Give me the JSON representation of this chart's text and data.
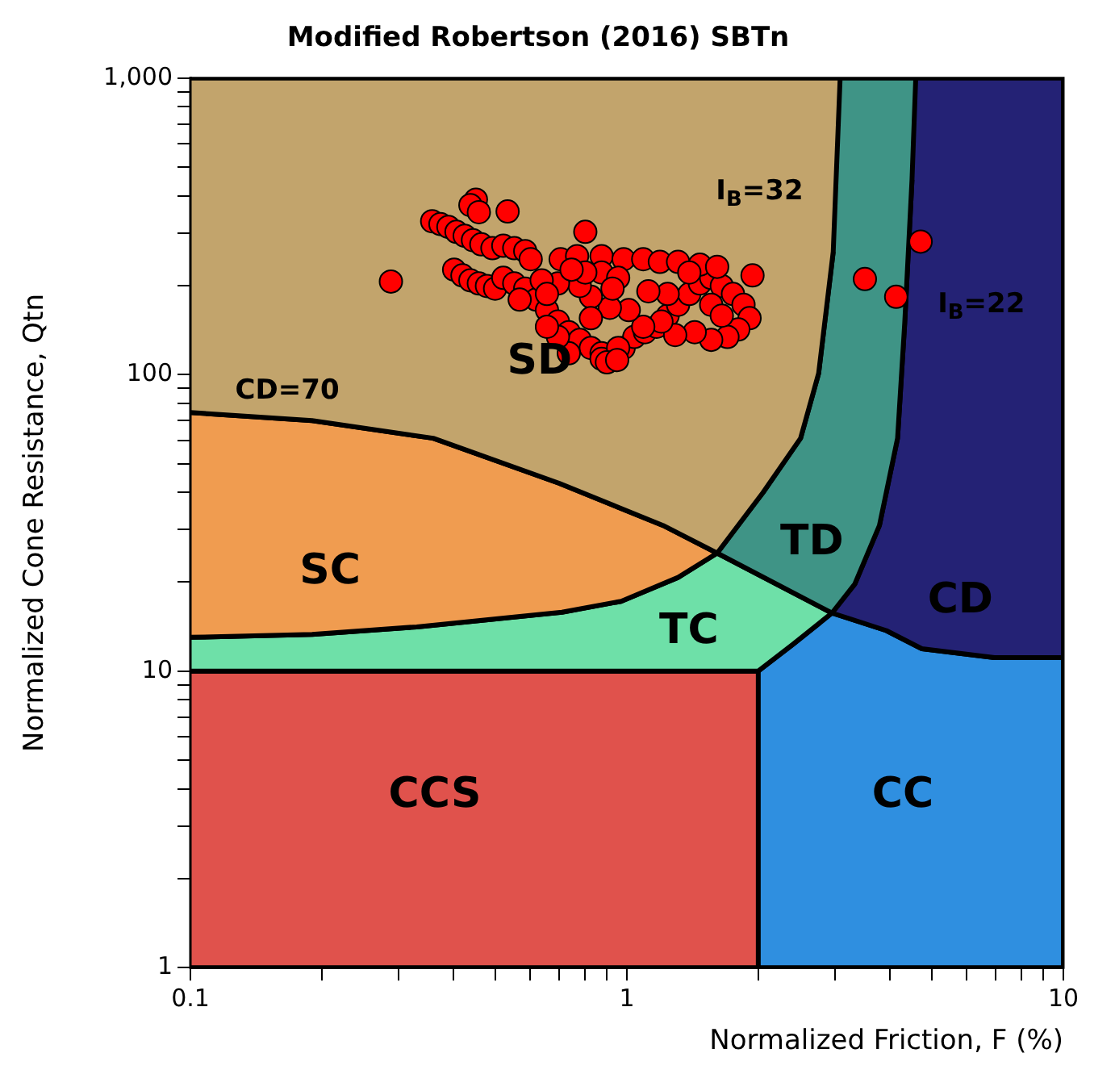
{
  "chart_data": {
    "type": "scatter",
    "title": "Modified Robertson (2016) SBTn",
    "xlabel": "Normalized Friction, F (%)",
    "ylabel": "Normalized Cone Resistance, Qtn",
    "log": "xy",
    "legend": false,
    "xlim": [
      0.1,
      10
    ],
    "ylim": [
      1,
      1000
    ],
    "xticks": [
      0.1,
      {
        "value": 0.2,
        "label": null
      },
      {
        "value": 0.3,
        "label": null
      },
      {
        "value": 0.4,
        "label": null
      },
      {
        "value": 0.5,
        "label": null
      },
      {
        "value": 0.6,
        "label": null
      },
      {
        "value": 0.7,
        "label": null
      },
      {
        "value": 0.8,
        "label": null
      },
      {
        "value": 0.9,
        "label": null
      },
      1,
      {
        "value": 2,
        "label": null
      },
      {
        "value": 3,
        "label": null
      },
      {
        "value": 4,
        "label": null
      },
      {
        "value": 5,
        "label": null
      },
      {
        "value": 6,
        "label": null
      },
      {
        "value": 7,
        "label": null
      },
      {
        "value": 8,
        "label": null
      },
      {
        "value": 9,
        "label": null
      },
      10
    ],
    "yticks": [
      1,
      {
        "value": 2,
        "label": null
      },
      {
        "value": 3,
        "label": null
      },
      {
        "value": 4,
        "label": null
      },
      {
        "value": 5,
        "label": null
      },
      {
        "value": 6,
        "label": null
      },
      {
        "value": 7,
        "label": null
      },
      {
        "value": 8,
        "label": null
      },
      {
        "value": 9,
        "label": null
      },
      10,
      {
        "value": 20,
        "label": null
      },
      {
        "value": 30,
        "label": null
      },
      {
        "value": 40,
        "label": null
      },
      {
        "value": 50,
        "label": null
      },
      {
        "value": 60,
        "label": null
      },
      {
        "value": 70,
        "label": null
      },
      {
        "value": 80,
        "label": null
      },
      {
        "value": 90,
        "label": null
      },
      100,
      {
        "value": 200,
        "label": null
      },
      {
        "value": 300,
        "label": null
      },
      {
        "value": 400,
        "label": null
      },
      {
        "value": 500,
        "label": null
      },
      {
        "value": 600,
        "label": null
      },
      {
        "value": 700,
        "label": null
      },
      {
        "value": 800,
        "label": null
      },
      {
        "value": 900,
        "label": null
      },
      {
        "value": 1000,
        "label": "1,000"
      }
    ],
    "series": [
      {
        "type": "area",
        "name": "SD",
        "marker": "none",
        "color": "#c2a46c",
        "x": [
          0.1,
          3.08,
          2.97,
          2.75,
          2.5,
          2.05,
          1.61,
          1.21,
          0.7,
          0.36,
          0.19,
          0.1
        ],
        "values": [
          1000,
          1000,
          260,
          101,
          61,
          40,
          25,
          31,
          43,
          61,
          70,
          74.5
        ]
      },
      {
        "type": "area",
        "name": "SC",
        "marker": "none",
        "color": "#f09c50",
        "x": [
          0.1,
          0.19,
          0.36,
          0.7,
          1.21,
          1.61,
          1.31,
          0.97,
          0.71,
          0.33,
          0.19,
          0.1
        ],
        "values": [
          74.5,
          70,
          61,
          43,
          31,
          25,
          20.7,
          17.2,
          15.8,
          14.1,
          13.3,
          13
        ]
      },
      {
        "type": "area",
        "name": "TD",
        "marker": "none",
        "color": "#3f9486",
        "x": [
          3.08,
          4.59,
          4.5,
          4.33,
          4.17,
          3.79,
          3.33,
          2.95,
          1.61,
          2.05,
          2.5,
          2.75,
          2.97
        ],
        "values": [
          1000,
          1000,
          454,
          149,
          61,
          31,
          19.7,
          15.7,
          25,
          40,
          61,
          101,
          260
        ]
      },
      {
        "type": "area",
        "name": "TC",
        "marker": "none",
        "color": "#6ee0a8",
        "x": [
          0.1,
          0.19,
          0.33,
          0.71,
          0.97,
          1.31,
          1.61,
          2.95,
          2.4,
          2,
          0.1
        ],
        "values": [
          13,
          13.3,
          14.1,
          15.8,
          17.2,
          20.7,
          25,
          15.7,
          12.3,
          10,
          10
        ]
      },
      {
        "type": "area",
        "name": "CD",
        "marker": "none",
        "color": "#242275",
        "x": [
          4.59,
          10,
          10,
          6.95,
          4.74,
          3.93,
          2.95,
          3.33,
          3.79,
          4.17,
          4.33,
          4.5
        ],
        "values": [
          1000,
          1000,
          11.1,
          11.1,
          11.9,
          13.7,
          15.7,
          19.7,
          31,
          61,
          149,
          454
        ]
      },
      {
        "type": "area",
        "name": "CCS",
        "marker": "none",
        "color": "#e0524c",
        "x": [
          0.1,
          2,
          2,
          0.1
        ],
        "values": [
          1,
          1,
          10,
          10
        ]
      },
      {
        "type": "area",
        "name": "CC",
        "marker": "none",
        "color": "#2f8fe0",
        "x": [
          2,
          10,
          10,
          6.95,
          4.74,
          3.93,
          2.95,
          2.4,
          2
        ],
        "values": [
          1,
          1,
          11.1,
          11.1,
          11.9,
          13.7,
          15.7,
          12.3,
          10
        ]
      },
      {
        "marker": "circle",
        "color": "#ff0000",
        "x": [
          0.288,
          0.451,
          0.438,
          0.458,
          0.533,
          0.358,
          0.374,
          0.39,
          0.407,
          0.425,
          0.444,
          0.464,
          0.492,
          0.521,
          0.552,
          0.585,
          0.602,
          0.402,
          0.42,
          0.438,
          0.458,
          0.478,
          0.499,
          0.521,
          0.552,
          0.585,
          0.62,
          0.656,
          0.695,
          0.736,
          0.78,
          0.827,
          0.875,
          0.983,
          1.04,
          1.1,
          1.17,
          1.24,
          1.31,
          1.39,
          1.47,
          1.56,
          1.65,
          1.75,
          1.85,
          1.91,
          1.8,
          1.7,
          1.56,
          1.43,
          1.29,
          1.2,
          1.09,
          1.01,
          0.914,
          0.827,
          0.78,
          0.695,
          0.638,
          0.568,
          0.656,
          0.705,
          0.769,
          0.803,
          0.875,
          0.983,
          1.09,
          1.19,
          1.31,
          1.47,
          1.61,
          1.94,
          1.24,
          1.12,
          0.875,
          0.803,
          0.747,
          0.955,
          1.39,
          1.56,
          1.65,
          0.927,
          0.827,
          0.736,
          0.875,
          0.955,
          0.695,
          0.656,
          0.9,
          0.95,
          3.51,
          4.14,
          4.71
        ],
        "values": [
          206,
          389,
          373,
          353,
          355,
          329,
          322,
          315,
          303,
          294,
          284,
          275,
          267,
          272,
          267,
          261,
          245,
          226,
          216,
          208,
          203,
          199,
          195,
          212,
          203,
          195,
          179,
          165,
          151,
          139,
          131,
          123,
          118,
          123,
          134,
          139,
          145,
          158,
          172,
          187,
          203,
          212,
          199,
          187,
          172,
          155,
          142,
          134,
          131,
          139,
          136,
          151,
          145,
          165,
          168,
          183,
          199,
          203,
          208,
          179,
          187,
          245,
          251,
          303,
          251,
          245,
          245,
          240,
          240,
          235,
          231,
          216,
          187,
          191,
          221,
          221,
          226,
          212,
          221,
          172,
          158,
          195,
          155,
          118,
          113,
          123,
          134,
          145,
          110,
          112,
          210,
          183,
          281
        ]
      }
    ],
    "annotations": [
      "CD=70",
      "I$_{B}$=32",
      "I$_{B}$=22"
    ]
  }
}
